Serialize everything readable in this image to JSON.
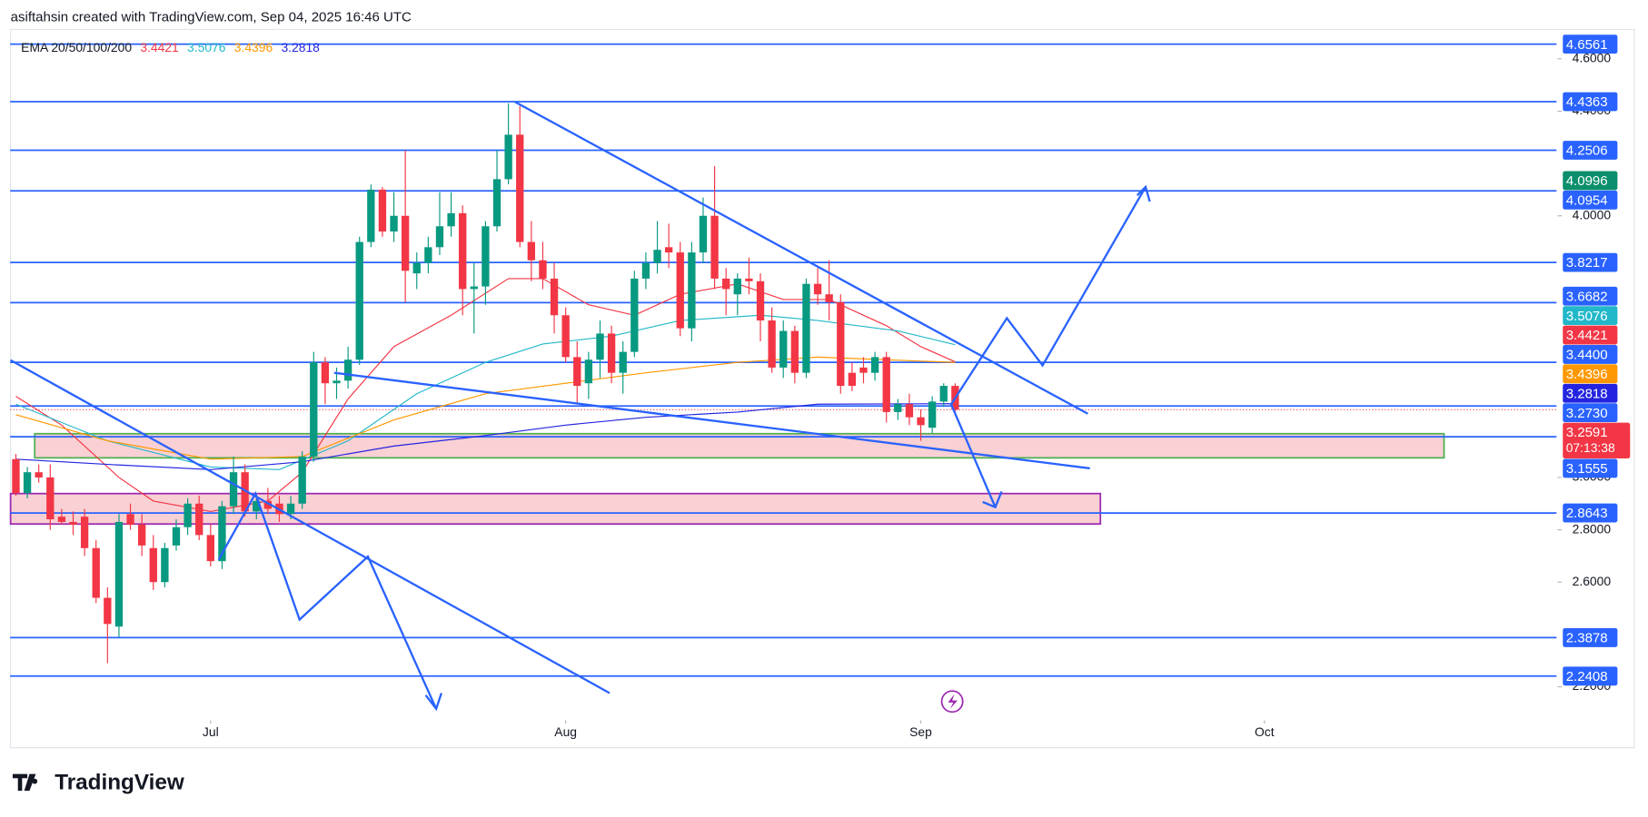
{
  "header": {
    "text": "asiftahsin created with TradingView.com, Sep 04, 2025 16:46 UTC"
  },
  "footer": {
    "brand": "TradingView"
  },
  "chart_data": {
    "type": "candlestick",
    "indicator_label": "EMA 20/50/100/200",
    "up_color": "#089981",
    "down_color": "#f23645",
    "open": [
      3.07,
      2.94,
      3.02,
      3.0,
      2.85,
      2.83,
      2.85,
      2.73,
      2.54,
      2.43,
      2.86,
      2.82,
      2.73,
      2.6,
      2.74,
      2.81,
      2.9,
      2.78,
      2.68,
      2.89,
      3.02,
      2.87,
      2.91,
      2.9,
      2.86,
      2.9,
      3.08,
      3.44,
      3.36,
      3.37,
      3.45,
      3.9,
      4.1,
      3.94,
      4.0,
      3.78,
      3.82,
      3.88,
      3.96,
      4.01,
      3.72,
      3.73,
      3.96,
      4.14,
      4.31,
      3.9,
      3.83,
      3.76,
      3.62,
      3.46,
      3.36,
      3.45,
      3.55,
      3.4,
      3.48,
      3.76,
      3.82,
      3.88,
      3.86,
      3.57,
      3.86,
      4.0,
      3.76,
      3.7,
      3.76,
      3.75,
      3.6,
      3.42,
      3.56,
      3.4,
      3.74,
      3.7,
      3.67,
      3.4,
      3.42,
      3.4,
      3.46,
      3.25,
      3.28,
      3.23,
      3.19,
      3.29,
      3.35
    ],
    "high": [
      3.09,
      3.04,
      3.05,
      3.05,
      2.88,
      2.87,
      2.88,
      2.76,
      2.58,
      2.86,
      2.9,
      2.86,
      2.78,
      2.75,
      2.84,
      2.92,
      2.93,
      2.82,
      2.91,
      3.08,
      3.05,
      2.94,
      2.96,
      2.93,
      2.93,
      3.1,
      3.48,
      3.46,
      3.42,
      3.5,
      3.92,
      4.12,
      4.11,
      4.09,
      4.25,
      3.86,
      3.92,
      4.09,
      4.09,
      4.04,
      3.82,
      3.98,
      4.25,
      4.43,
      4.42,
      3.98,
      3.9,
      3.82,
      3.65,
      3.52,
      3.48,
      3.6,
      3.58,
      3.52,
      3.79,
      3.86,
      3.98,
      3.97,
      3.9,
      3.9,
      4.07,
      4.19,
      3.8,
      3.78,
      3.84,
      3.78,
      3.65,
      3.6,
      3.58,
      3.76,
      3.8,
      3.83,
      3.7,
      3.44,
      3.46,
      3.48,
      3.48,
      3.3,
      3.32,
      3.26,
      3.31,
      3.36,
      3.36
    ],
    "low": [
      2.93,
      2.92,
      2.98,
      2.8,
      2.82,
      2.78,
      2.7,
      2.52,
      2.29,
      2.39,
      2.8,
      2.7,
      2.57,
      2.58,
      2.72,
      2.78,
      2.76,
      2.66,
      2.65,
      2.86,
      2.85,
      2.84,
      2.86,
      2.83,
      2.84,
      2.88,
      3.06,
      3.28,
      3.3,
      3.34,
      3.43,
      3.88,
      3.92,
      3.9,
      3.67,
      3.72,
      3.78,
      3.85,
      3.92,
      3.62,
      3.55,
      3.66,
      3.94,
      4.12,
      3.88,
      3.75,
      3.72,
      3.55,
      3.44,
      3.28,
      3.3,
      3.38,
      3.36,
      3.32,
      3.46,
      3.72,
      3.78,
      3.8,
      3.54,
      3.52,
      3.82,
      3.72,
      3.62,
      3.62,
      3.7,
      3.52,
      3.4,
      3.38,
      3.36,
      3.38,
      3.66,
      3.6,
      3.32,
      3.33,
      3.36,
      3.37,
      3.21,
      3.22,
      3.2,
      3.14,
      3.17,
      3.27,
      3.25
    ],
    "close": [
      2.94,
      3.02,
      3.0,
      2.84,
      2.83,
      2.82,
      2.73,
      2.54,
      2.44,
      2.83,
      2.82,
      2.74,
      2.6,
      2.73,
      2.81,
      2.9,
      2.78,
      2.68,
      2.89,
      3.02,
      2.87,
      2.91,
      2.88,
      2.86,
      2.9,
      3.08,
      3.44,
      3.36,
      3.37,
      3.45,
      3.9,
      4.1,
      3.94,
      4.0,
      3.79,
      3.82,
      3.88,
      3.96,
      4.01,
      3.72,
      3.73,
      3.96,
      4.14,
      4.31,
      3.9,
      3.83,
      3.76,
      3.62,
      3.46,
      3.35,
      3.45,
      3.55,
      3.4,
      3.48,
      3.76,
      3.82,
      3.87,
      3.86,
      3.57,
      3.86,
      4.0,
      3.76,
      3.72,
      3.76,
      3.75,
      3.6,
      3.42,
      3.56,
      3.4,
      3.74,
      3.7,
      3.67,
      3.35,
      3.35,
      3.4,
      3.46,
      3.25,
      3.28,
      3.23,
      3.2,
      3.29,
      3.35,
      3.2591
    ],
    "countdown": "07:13:38",
    "xlim": [
      -0.5,
      134.5
    ],
    "xticks": [
      {
        "value": 17,
        "label": "Jul"
      },
      {
        "value": 48,
        "label": "Aug"
      },
      {
        "value": 79,
        "label": "Sep"
      },
      {
        "value": 109,
        "label": "Oct"
      }
    ],
    "ylim": [
      2.1,
      4.7
    ],
    "yticks": [
      {
        "value": 4.6,
        "label": "4.6000"
      },
      {
        "value": 4.4,
        "label": "4.4000"
      },
      {
        "value": 4.0,
        "label": "4.0000"
      },
      {
        "value": 3.0,
        "label": "3.0000"
      },
      {
        "value": 2.8,
        "label": "2.8000"
      },
      {
        "value": 2.6,
        "label": "2.6000"
      },
      {
        "value": 2.2,
        "label": "2.2000"
      }
    ],
    "grid": false,
    "ema": [
      {
        "color": "#f23645",
        "x": [
          0,
          4,
          9,
          12,
          17,
          22,
          25,
          29,
          33,
          38,
          43,
          46,
          50,
          54,
          58,
          63,
          67,
          71,
          76,
          79,
          82
        ],
        "values": [
          3.31,
          3.2,
          3.0,
          2.91,
          2.87,
          2.91,
          3.02,
          3.3,
          3.5,
          3.62,
          3.76,
          3.76,
          3.66,
          3.62,
          3.7,
          3.74,
          3.68,
          3.68,
          3.58,
          3.5,
          3.4421
        ]
      },
      {
        "color": "#22b8c9",
        "x": [
          0,
          8,
          17,
          23,
          29,
          35,
          41,
          46,
          52,
          58,
          65,
          70,
          77,
          82
        ],
        "values": [
          3.28,
          3.14,
          3.04,
          3.03,
          3.14,
          3.32,
          3.44,
          3.51,
          3.54,
          3.6,
          3.62,
          3.6,
          3.56,
          3.5076
        ]
      },
      {
        "color": "#ff9800",
        "x": [
          0,
          8,
          17,
          25,
          33,
          41,
          48,
          55,
          63,
          70,
          82
        ],
        "values": [
          3.24,
          3.14,
          3.07,
          3.08,
          3.22,
          3.32,
          3.36,
          3.4,
          3.44,
          3.46,
          3.4396
        ]
      },
      {
        "color": "#2424e0",
        "x": [
          0,
          8,
          17,
          25,
          33,
          41,
          48,
          55,
          63,
          70,
          82
        ],
        "values": [
          3.07,
          3.05,
          3.03,
          3.06,
          3.12,
          3.16,
          3.2,
          3.23,
          3.25,
          3.28,
          3.2818
        ]
      }
    ],
    "levels": {
      "color": "#2962ff",
      "values": [
        4.6561,
        4.4363,
        4.2506,
        4.0954,
        3.8217,
        3.6682,
        3.44,
        3.273,
        3.1555,
        2.8643,
        2.3878,
        2.2408
      ],
      "value_labels": [
        "4.6561",
        "4.4363",
        "4.2506",
        "4.0954",
        "3.8217",
        "3.6682",
        "3.4400",
        "3.2730",
        "3.1555",
        "2.8643",
        "2.3878",
        "2.2408"
      ]
    },
    "marker_tag": {
      "value": 4.0996,
      "color": "#0b8f6c"
    }
  }
}
